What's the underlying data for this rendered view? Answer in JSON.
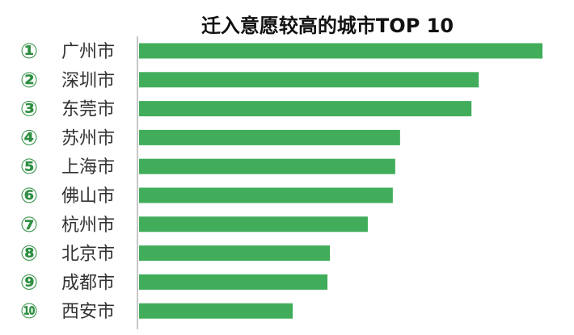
{
  "chart_data": {
    "type": "bar",
    "orientation": "horizontal",
    "title": "迁入意愿较高的城市TOP 10",
    "rank_labels": [
      "①",
      "②",
      "③",
      "④",
      "⑤",
      "⑥",
      "⑦",
      "⑧",
      "⑨",
      "⑩"
    ],
    "categories": [
      "广州市",
      "深圳市",
      "东莞市",
      "苏州市",
      "上海市",
      "佛山市",
      "杭州市",
      "北京市",
      "成都市",
      "西安市"
    ],
    "values": [
      100,
      84.2,
      82.4,
      64.7,
      63.5,
      62.9,
      56.7,
      47.3,
      46.7,
      38.1
    ],
    "value_note": "relative, top = 100 (no axis printed)",
    "xlim": [
      0,
      100
    ],
    "grid": false,
    "legend": "none",
    "colors": {
      "bar": "#41ad5b",
      "rank": "#2f8f42",
      "axis": "#c8c8c8",
      "label": "#333333"
    }
  }
}
